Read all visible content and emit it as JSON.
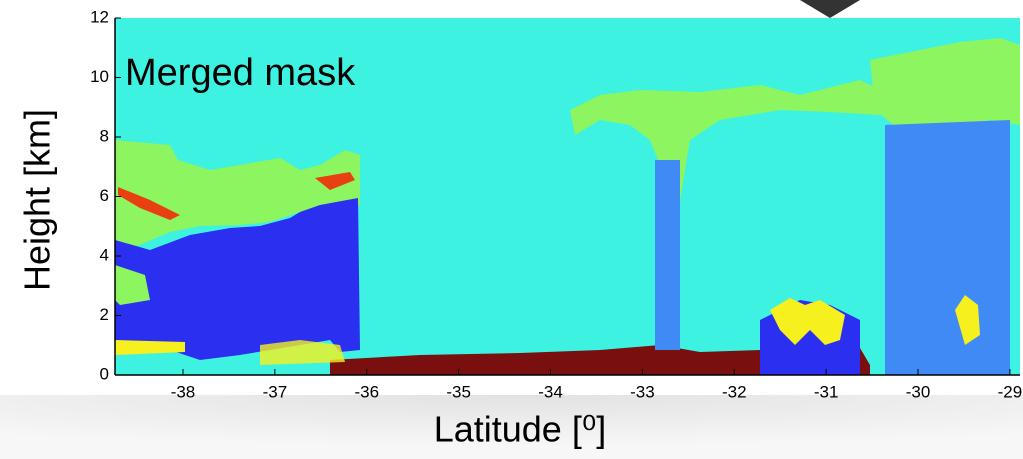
{
  "chart_data": {
    "type": "mask",
    "title": "Merged mask",
    "x_label": "Latitude [⁰]",
    "y_label": "Height [km]",
    "xlim": [
      -38.74,
      -28.89
    ],
    "xticks": [
      -38,
      -37,
      -36,
      -35,
      -34,
      -33,
      -32,
      -31,
      -30,
      -29
    ],
    "ylim": [
      0,
      12
    ],
    "yticks": [
      0,
      2,
      4,
      6,
      8,
      10,
      12
    ],
    "background_color": "#3ef2e2"
  }
}
